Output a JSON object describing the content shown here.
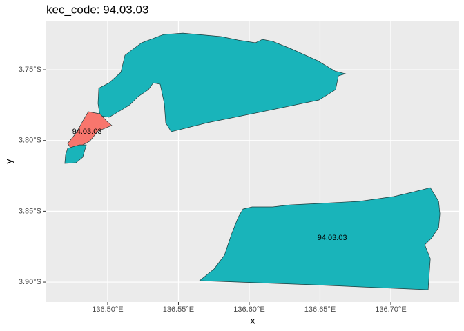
{
  "chart_data": {
    "type": "map",
    "title": "kec_code: 94.03.03",
    "xlabel": "x",
    "ylabel": "y",
    "xlim": [
      136.4566,
      136.7483
    ],
    "ylim": [
      -3.9141,
      -3.7154
    ],
    "xticks": [
      {
        "value": 136.5,
        "label": "136.50°E"
      },
      {
        "value": 136.55,
        "label": "136.55°E"
      },
      {
        "value": 136.6,
        "label": "136.60°E"
      },
      {
        "value": 136.65,
        "label": "136.65°E"
      },
      {
        "value": 136.7,
        "label": "136.70°E"
      }
    ],
    "yticks": [
      {
        "value": -3.75,
        "label": "3.75°S"
      },
      {
        "value": -3.8,
        "label": "3.80°S"
      },
      {
        "value": -3.85,
        "label": "3.85°S"
      },
      {
        "value": -3.9,
        "label": "3.90°S"
      }
    ],
    "grid": true,
    "shapes": [
      {
        "color": "#19b4ba",
        "lon": [
          136.5122,
          136.5239,
          136.5395,
          136.5532,
          136.58,
          136.5922,
          136.6044,
          136.6093,
          136.6166,
          136.6288,
          136.6484,
          136.6606,
          136.6679,
          136.663,
          136.661,
          136.6493,
          136.6093,
          136.5703,
          136.5449,
          136.541,
          136.54,
          136.5371,
          136.5322,
          136.5288,
          136.5215,
          136.5156,
          136.5093,
          136.501,
          136.4946,
          136.4932,
          136.4937,
          136.501,
          136.5093
        ],
        "lat": [
          -3.7398,
          -3.731,
          -3.7252,
          -3.7242,
          -3.7266,
          -3.7291,
          -3.731,
          -3.7286,
          -3.73,
          -3.7349,
          -3.7437,
          -3.751,
          -3.7529,
          -3.7544,
          -3.7641,
          -3.7714,
          -3.7797,
          -3.7875,
          -3.7938,
          -3.7875,
          -3.7739,
          -3.7602,
          -3.7593,
          -3.7641,
          -3.769,
          -3.7748,
          -3.7787,
          -3.7836,
          -3.7826,
          -3.7739,
          -3.7631,
          -3.7593,
          -3.7519
        ]
      },
      {
        "color": "#f8766d",
        "lon": [
          136.4863,
          136.4946,
          136.4995,
          136.5029,
          136.4932,
          136.4873,
          136.4824,
          136.4751,
          136.4717,
          136.4776,
          136.4834
        ],
        "lat": [
          -3.7797,
          -3.7812,
          -3.7865,
          -3.7894,
          -3.7933,
          -3.8006,
          -3.8031,
          -3.807,
          -3.8021,
          -3.7948,
          -3.7846
        ]
      },
      {
        "color": "#19b4ba",
        "lon": [
          136.4717,
          136.48,
          136.4849,
          136.4824,
          136.4776,
          136.4697,
          136.4702
        ],
        "lat": [
          -3.8055,
          -3.8031,
          -3.8031,
          -3.8118,
          -3.8157,
          -3.8162,
          -3.8104
        ]
      },
      {
        "color": "#19b4ba",
        "lon": [
          136.5649,
          136.5752,
          136.5825,
          136.5874,
          136.5922,
          136.5956,
          136.602,
          136.6166,
          136.6288,
          136.6484,
          136.6776,
          136.702,
          136.7167,
          136.7279,
          136.7338,
          136.7347,
          136.7338,
          136.7289,
          136.724,
          136.7279,
          136.7264,
          136.6435
        ],
        "lat": [
          -3.899,
          -3.8907,
          -3.881,
          -3.8664,
          -3.8542,
          -3.8484,
          -3.8469,
          -3.8469,
          -3.8455,
          -3.8445,
          -3.843,
          -3.8396,
          -3.8362,
          -3.8333,
          -3.843,
          -3.8518,
          -3.8615,
          -3.8688,
          -3.8737,
          -3.8834,
          -3.9054,
          -3.9019
        ]
      }
    ],
    "labels": [
      {
        "text": "94.03.03",
        "x": 136.4854,
        "y": -3.7938
      },
      {
        "text": "94.03.03",
        "x": 136.6586,
        "y": -3.8688
      }
    ]
  }
}
